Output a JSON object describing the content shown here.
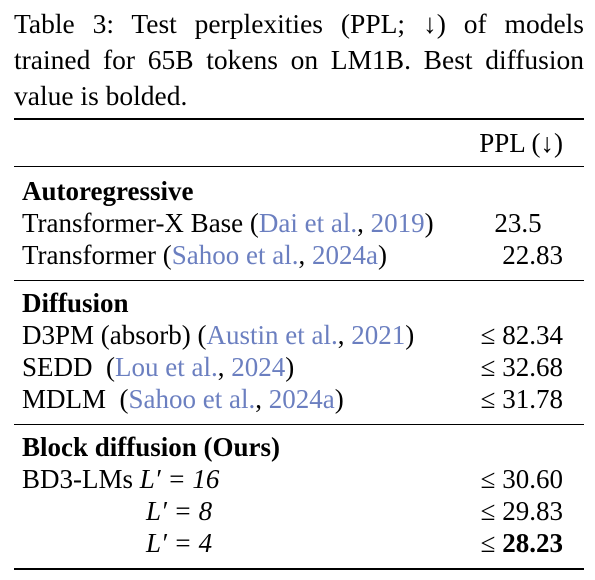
{
  "caption": "Table 3: Test perplexities (PPL; ↓) of models trained for 65B tokens on LM1B. Best diffusion value is bolded.",
  "header": {
    "metric": "PPL (↓)"
  },
  "sections": [
    {
      "title": "Autoregressive",
      "rows": [
        {
          "name": "Transformer-X Base",
          "cite_open": " (",
          "cite_author": "Dai et al.",
          "cite_sep": ", ",
          "cite_year": "2019",
          "cite_close": ")",
          "value": "23.5"
        },
        {
          "name": "Transformer",
          "cite_open": " (",
          "cite_author": "Sahoo et al.",
          "cite_sep": ", ",
          "cite_year": "2024a",
          "cite_close": ")",
          "value": "22.83"
        }
      ]
    },
    {
      "title": "Diffusion",
      "rows": [
        {
          "name": "D3PM (absorb)",
          "cite_open": " (",
          "cite_author": "Austin et al.",
          "cite_sep": ", ",
          "cite_year": "2021",
          "cite_close": ")",
          "value": "≤ 82.34"
        },
        {
          "name": "SEDD",
          "cite_open": "  (",
          "cite_author": "Lou et al.",
          "cite_sep": ", ",
          "cite_year": "2024",
          "cite_close": ")",
          "value": "≤ 32.68"
        },
        {
          "name": "MDLM",
          "cite_open": "  (",
          "cite_author": "Sahoo et al.",
          "cite_sep": ", ",
          "cite_year": "2024a",
          "cite_close": ")",
          "value": "≤ 31.78"
        }
      ]
    },
    {
      "title": "Block diffusion (Ours)",
      "rows": [
        {
          "name": "BD3-LMs",
          "param": "L′ = 16",
          "value": "≤ 30.60"
        },
        {
          "param": "L′ = 8",
          "value": "≤ 29.83"
        },
        {
          "param": "L′ = 4",
          "value_prefix": "≤ ",
          "value_bold": "28.23"
        }
      ]
    }
  ]
}
